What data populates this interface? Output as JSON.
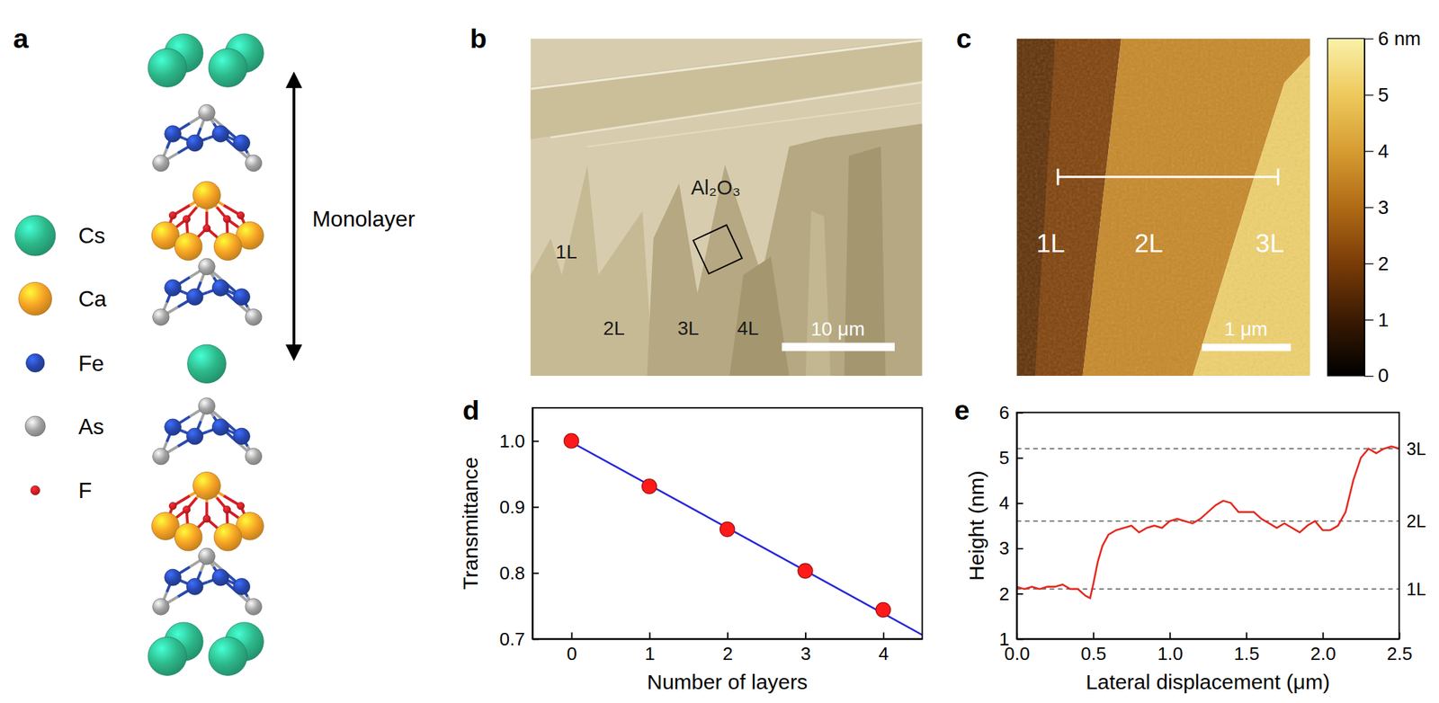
{
  "chart_data": [
    {
      "type": "scatter",
      "panel_label": "d",
      "x_label": "Number of layers",
      "y_label": "Transmittance",
      "xlim": [
        -0.5,
        4.5
      ],
      "ylim": [
        0.7,
        1.05
      ],
      "xticks": [
        0,
        1,
        2,
        3,
        4
      ],
      "yticks": [
        0.7,
        0.8,
        0.9,
        {
          "value": 1,
          "label": "1.0"
        }
      ],
      "series": [
        {
          "type": "line",
          "color": "#2626d9",
          "line_style": "solid",
          "x": [
            0,
            4.5
          ],
          "values": [
            0.998,
            0.706
          ]
        },
        {
          "type": "scatter",
          "color": "#ff1a1a",
          "marker": "circle",
          "x": [
            0,
            1,
            2,
            3,
            4
          ],
          "values": [
            1.0,
            0.931,
            0.866,
            0.803,
            0.744
          ]
        }
      ]
    },
    {
      "type": "line",
      "panel_label": "e",
      "x_label": "Lateral displacement (μm)",
      "y_label": "Height (nm)",
      "xlim": [
        0,
        2.5
      ],
      "ylim": [
        1,
        6
      ],
      "xticks": [
        {
          "value": 0,
          "label": "0.0"
        },
        0.5,
        {
          "value": 1,
          "label": "1.0"
        },
        1.5,
        {
          "value": 2,
          "label": "2.0"
        },
        2.5
      ],
      "yticks": [
        1,
        2,
        3,
        4,
        5,
        6
      ],
      "series": [
        {
          "type": "line",
          "color": "#e6281e",
          "line_style": "solid",
          "x": [
            0,
            0.05,
            0.1,
            0.15,
            0.2,
            0.25,
            0.3,
            0.35,
            0.4,
            0.45,
            0.48,
            0.5,
            0.53,
            0.56,
            0.6,
            0.65,
            0.7,
            0.75,
            0.8,
            0.85,
            0.9,
            0.95,
            1.0,
            1.05,
            1.1,
            1.15,
            1.2,
            1.25,
            1.3,
            1.35,
            1.4,
            1.45,
            1.5,
            1.55,
            1.6,
            1.65,
            1.7,
            1.75,
            1.8,
            1.85,
            1.9,
            1.95,
            2.0,
            2.05,
            2.1,
            2.15,
            2.2,
            2.25,
            2.3,
            2.35,
            2.4,
            2.45,
            2.5
          ],
          "values": [
            2.15,
            2.1,
            2.15,
            2.1,
            2.15,
            2.15,
            2.2,
            2.1,
            2.1,
            1.95,
            1.9,
            2.2,
            2.7,
            3.05,
            3.3,
            3.4,
            3.45,
            3.5,
            3.35,
            3.45,
            3.5,
            3.45,
            3.6,
            3.65,
            3.6,
            3.55,
            3.65,
            3.8,
            3.95,
            4.05,
            4.0,
            3.8,
            3.8,
            3.8,
            3.65,
            3.55,
            3.45,
            3.55,
            3.45,
            3.35,
            3.5,
            3.6,
            3.4,
            3.4,
            3.5,
            3.8,
            4.5,
            5.0,
            5.2,
            5.1,
            5.2,
            5.25,
            5.2
          ]
        }
      ],
      "annotations": [
        {
          "y": 2.1,
          "text": "1L"
        },
        {
          "y": 3.6,
          "text": "2L"
        },
        {
          "y": 5.2,
          "text": "3L"
        }
      ]
    }
  ],
  "panel_a": {
    "label": "a",
    "legend": [
      {
        "name": "Cs",
        "color": "#2db88a"
      },
      {
        "name": "Ca",
        "color": "#f7a325"
      },
      {
        "name": "Fe",
        "color": "#2848b0"
      },
      {
        "name": "As",
        "color": "#a3a3a3"
      },
      {
        "name": "F",
        "color": "#d41e24"
      }
    ],
    "monolayer_label": "Monolayer"
  },
  "panel_b": {
    "label": "b",
    "substrate": "Al₂O₃",
    "layer_labels": [
      "1L",
      "2L",
      "3L",
      "4L"
    ],
    "scale_bar": "10 μm"
  },
  "panel_c": {
    "label": "c",
    "regions": [
      {
        "label": "1L",
        "height": 2.1
      },
      {
        "label": "2L",
        "height": 3.6
      },
      {
        "label": "3L",
        "height": 5.2
      }
    ],
    "scale_bar": "1 μm",
    "colorbar": {
      "range": [
        0,
        6
      ],
      "ticks": [
        0,
        1,
        2,
        3,
        4,
        5,
        {
          "value": 6,
          "label": "6 nm"
        }
      ]
    }
  }
}
